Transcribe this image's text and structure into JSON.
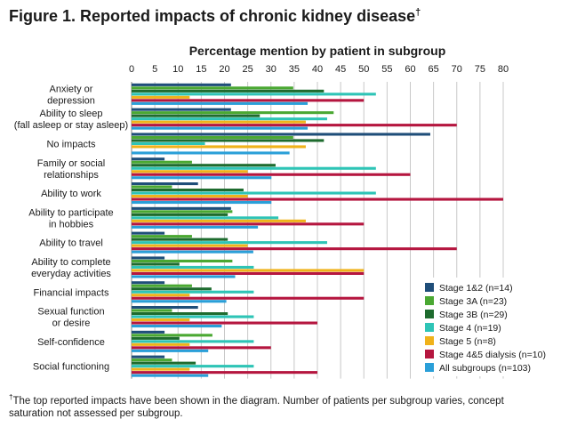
{
  "figure": {
    "title": "Figure 1. Reported impacts of chronic kidney disease",
    "title_mark": "†",
    "footnote_mark": "†",
    "footnote": "The top reported impacts have been shown in the diagram. Number of patients per subgroup varies, concept saturation not assessed per subgroup."
  },
  "chart_data": {
    "type": "bar",
    "orientation": "horizontal",
    "title": "Percentage mention by patient in subgroup",
    "xlim": [
      0,
      80
    ],
    "xticks": [
      0,
      5,
      10,
      15,
      20,
      25,
      30,
      35,
      40,
      45,
      50,
      55,
      60,
      65,
      70,
      75,
      80
    ],
    "grid": true,
    "legend_position": "bottom-right",
    "categories": [
      [
        "Anxiety or",
        "depression"
      ],
      [
        "Ability to sleep",
        "(fall asleep or stay asleep)"
      ],
      [
        "No impacts"
      ],
      [
        "Family or social",
        "relationships"
      ],
      [
        "Ability to work"
      ],
      [
        "Ability to participate",
        "in hobbies"
      ],
      [
        "Ability to travel"
      ],
      [
        "Ability to complete",
        "everyday activities"
      ],
      [
        "Financial impacts"
      ],
      [
        "Sexual function",
        "or desire"
      ],
      [
        "Self-confidence"
      ],
      [
        "Social functioning"
      ]
    ],
    "series": [
      {
        "name": "Stage 1&2 (n=14)",
        "color": "#1f4e79",
        "values": [
          21.4,
          21.4,
          64.3,
          7.1,
          14.3,
          21.4,
          7.1,
          7.1,
          7.1,
          14.3,
          7.1,
          7.1
        ]
      },
      {
        "name": "Stage 3A (n=23)",
        "color": "#4aa832",
        "values": [
          34.8,
          43.5,
          34.8,
          13.0,
          8.7,
          21.7,
          13.0,
          21.7,
          13.0,
          8.7,
          17.4,
          8.7
        ]
      },
      {
        "name": "Stage 3B (n=29)",
        "color": "#1e6b2e",
        "values": [
          41.4,
          27.6,
          41.4,
          31.0,
          24.1,
          20.7,
          20.7,
          10.3,
          17.2,
          20.7,
          10.3,
          13.8
        ]
      },
      {
        "name": "Stage 4 (n=19)",
        "color": "#2ec4b6",
        "values": [
          52.6,
          42.1,
          15.8,
          52.6,
          52.6,
          31.6,
          42.1,
          26.3,
          26.3,
          26.3,
          26.3,
          26.3
        ]
      },
      {
        "name": "Stage 5 (n=8)",
        "color": "#f0b21a",
        "values": [
          12.5,
          37.5,
          37.5,
          25.0,
          25.0,
          37.5,
          25.0,
          50.0,
          12.5,
          12.5,
          12.5,
          12.5
        ]
      },
      {
        "name": "Stage 4&5 dialysis (n=10)",
        "color": "#b5163f",
        "values": [
          50.0,
          70.0,
          0,
          60.0,
          80.0,
          50.0,
          70.0,
          50.0,
          50.0,
          40.0,
          30.0,
          40.0
        ]
      },
      {
        "name": "All subgroups (n=103)",
        "color": "#2a9fd8",
        "values": [
          37.9,
          37.9,
          34.0,
          30.1,
          30.1,
          27.2,
          26.2,
          22.3,
          20.4,
          19.4,
          16.5,
          16.5
        ]
      }
    ]
  }
}
